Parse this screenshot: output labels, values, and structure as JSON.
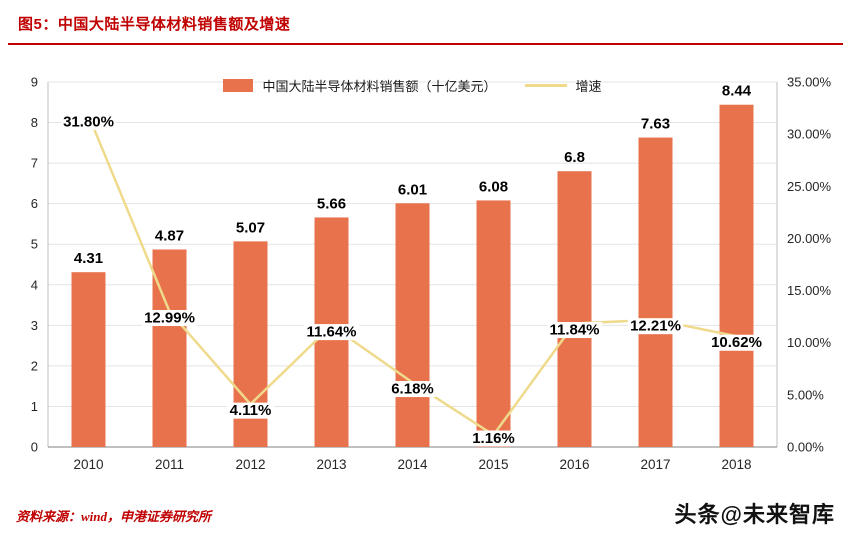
{
  "header": {
    "title": "图5：中国大陆半导体材料销售额及增速"
  },
  "footer": {
    "source": "资料来源：wind，申港证券研究所",
    "watermark": "头条@未来智库"
  },
  "colors": {
    "title_red": "#C00000",
    "bar": "#E8724C",
    "line": "#EFDA8C",
    "gridline": "#E4E4E4",
    "axis": "#BFBFBF",
    "x_axis": "#808080"
  },
  "chart_data": {
    "type": "bar",
    "subtype": "bar-line-combo",
    "title": "中国大陆半导体材料销售额及增速",
    "categories": [
      "2010",
      "2011",
      "2012",
      "2013",
      "2014",
      "2015",
      "2016",
      "2017",
      "2018"
    ],
    "series": [
      {
        "name": "中国大陆半导体材料销售额（十亿美元）",
        "type": "bar",
        "axis": "left",
        "color": "#E8724C",
        "values": [
          4.31,
          4.87,
          5.07,
          5.66,
          6.01,
          6.08,
          6.8,
          7.63,
          8.44
        ],
        "labels": [
          "4.31",
          "4.87",
          "5.07",
          "5.66",
          "6.01",
          "6.08",
          "6.8",
          "7.63",
          "8.44"
        ]
      },
      {
        "name": "增速",
        "type": "line",
        "axis": "right",
        "color": "#EFDA8C",
        "values": [
          31.8,
          12.99,
          4.11,
          11.64,
          6.18,
          1.16,
          11.84,
          12.21,
          10.62
        ],
        "labels": [
          "31.80%",
          "12.99%",
          "4.11%",
          "11.64%",
          "6.18%",
          "1.16%",
          "11.84%",
          "12.21%",
          "10.62%"
        ]
      }
    ],
    "left_axis": {
      "min": 0,
      "max": 9,
      "ticks": [
        "0",
        "1",
        "2",
        "3",
        "4",
        "5",
        "6",
        "7",
        "8",
        "9"
      ]
    },
    "right_axis": {
      "min": 0,
      "max": 35,
      "ticks": [
        "0.00%",
        "5.00%",
        "10.00%",
        "15.00%",
        "20.00%",
        "25.00%",
        "30.00%",
        "35.00%"
      ]
    },
    "grid": "horizontal",
    "legend_position": "top-center"
  }
}
